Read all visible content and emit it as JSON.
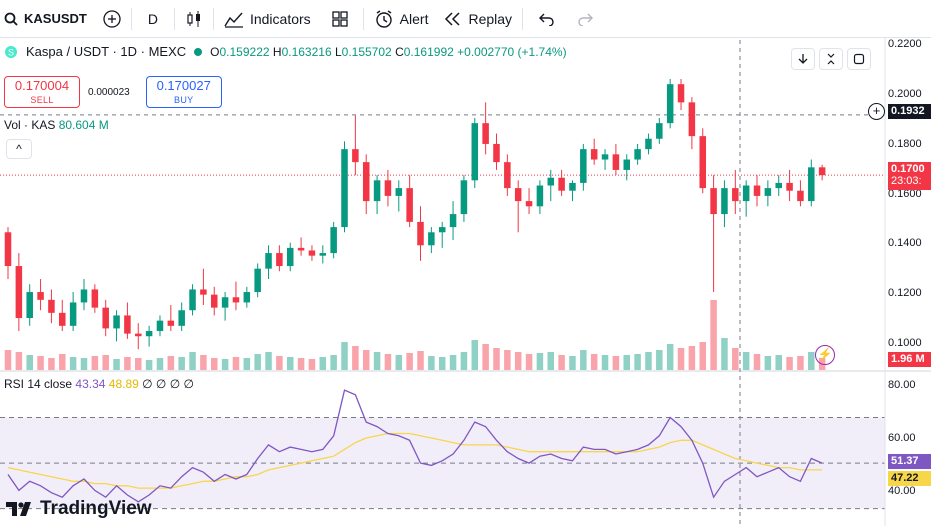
{
  "toolbar": {
    "symbol": "KASUSDT",
    "interval": "D",
    "indicators": "Indicators",
    "alert": "Alert",
    "replay": "Replay"
  },
  "header": {
    "pair": "Kaspa / USDT · 1D · MEXC",
    "open_lbl": "O",
    "open": "0.159222",
    "high_lbl": "H",
    "high": "0.163216",
    "low_lbl": "L",
    "low": "0.155702",
    "close_lbl": "C",
    "close": "0.161992",
    "change": "+0.002770 (+1.74%)"
  },
  "trade": {
    "sell_price": "0.170004",
    "sell_label": "SELL",
    "spread": "0.000023",
    "buy_price": "0.170027",
    "buy_label": "BUY"
  },
  "volume": {
    "label": "Vol · KAS",
    "value": "80.604 M"
  },
  "rsi": {
    "label": "RSI 14 close",
    "value": "43.34",
    "ma": "48.89",
    "extra": "∅ ∅ ∅ ∅"
  },
  "price_axis": [
    "0.2200",
    "0.2000",
    "0.1800",
    "0.1600",
    "0.1400",
    "0.1200",
    "0.1000"
  ],
  "rsi_axis": [
    "80.00",
    "60.00",
    "40.00"
  ],
  "badges": {
    "crosshair": "0.1932",
    "last_price": "0.1700",
    "countdown": "23:03:",
    "volume": "1.96 M",
    "rsi": "51.37",
    "rsi_ma": "47.22"
  },
  "branding": {
    "logo_text": "TradingView"
  },
  "colors": {
    "up": "#089981",
    "down": "#f23645",
    "rsi": "#7e57c2",
    "rsi_ma": "#f7d64a"
  },
  "chart_data": {
    "type": "candlestick",
    "ohlc": [
      [
        0.148,
        0.15,
        0.13,
        0.135
      ],
      [
        0.135,
        0.14,
        0.11,
        0.115
      ],
      [
        0.115,
        0.128,
        0.112,
        0.125
      ],
      [
        0.125,
        0.13,
        0.118,
        0.122
      ],
      [
        0.122,
        0.126,
        0.113,
        0.117
      ],
      [
        0.117,
        0.122,
        0.11,
        0.112
      ],
      [
        0.112,
        0.125,
        0.11,
        0.121
      ],
      [
        0.121,
        0.13,
        0.118,
        0.126
      ],
      [
        0.126,
        0.128,
        0.117,
        0.119
      ],
      [
        0.119,
        0.122,
        0.108,
        0.111
      ],
      [
        0.111,
        0.118,
        0.106,
        0.116
      ],
      [
        0.116,
        0.121,
        0.107,
        0.109
      ],
      [
        0.109,
        0.113,
        0.103,
        0.108
      ],
      [
        0.108,
        0.112,
        0.104,
        0.11
      ],
      [
        0.11,
        0.116,
        0.108,
        0.114
      ],
      [
        0.114,
        0.12,
        0.11,
        0.112
      ],
      [
        0.112,
        0.121,
        0.11,
        0.118
      ],
      [
        0.118,
        0.128,
        0.116,
        0.126
      ],
      [
        0.126,
        0.134,
        0.12,
        0.124
      ],
      [
        0.124,
        0.127,
        0.116,
        0.119
      ],
      [
        0.119,
        0.125,
        0.114,
        0.123
      ],
      [
        0.123,
        0.129,
        0.118,
        0.121
      ],
      [
        0.121,
        0.127,
        0.119,
        0.125
      ],
      [
        0.125,
        0.136,
        0.123,
        0.134
      ],
      [
        0.134,
        0.143,
        0.13,
        0.14
      ],
      [
        0.14,
        0.143,
        0.133,
        0.135
      ],
      [
        0.135,
        0.144,
        0.133,
        0.142
      ],
      [
        0.142,
        0.146,
        0.139,
        0.141
      ],
      [
        0.141,
        0.143,
        0.137,
        0.139
      ],
      [
        0.139,
        0.143,
        0.136,
        0.14
      ],
      [
        0.14,
        0.152,
        0.138,
        0.15
      ],
      [
        0.15,
        0.183,
        0.148,
        0.18
      ],
      [
        0.18,
        0.193,
        0.17,
        0.175
      ],
      [
        0.175,
        0.178,
        0.155,
        0.16
      ],
      [
        0.16,
        0.17,
        0.155,
        0.168
      ],
      [
        0.168,
        0.172,
        0.158,
        0.162
      ],
      [
        0.162,
        0.168,
        0.156,
        0.165
      ],
      [
        0.165,
        0.17,
        0.15,
        0.152
      ],
      [
        0.152,
        0.158,
        0.137,
        0.143
      ],
      [
        0.143,
        0.15,
        0.14,
        0.148
      ],
      [
        0.148,
        0.152,
        0.142,
        0.15
      ],
      [
        0.15,
        0.16,
        0.145,
        0.155
      ],
      [
        0.155,
        0.17,
        0.152,
        0.168
      ],
      [
        0.168,
        0.192,
        0.165,
        0.19
      ],
      [
        0.19,
        0.198,
        0.178,
        0.182
      ],
      [
        0.182,
        0.186,
        0.172,
        0.175
      ],
      [
        0.175,
        0.178,
        0.162,
        0.165
      ],
      [
        0.165,
        0.168,
        0.148,
        0.16
      ],
      [
        0.16,
        0.165,
        0.155,
        0.158
      ],
      [
        0.158,
        0.168,
        0.155,
        0.166
      ],
      [
        0.166,
        0.172,
        0.16,
        0.169
      ],
      [
        0.169,
        0.172,
        0.162,
        0.164
      ],
      [
        0.164,
        0.168,
        0.16,
        0.167
      ],
      [
        0.167,
        0.182,
        0.164,
        0.18
      ],
      [
        0.18,
        0.184,
        0.174,
        0.176
      ],
      [
        0.176,
        0.18,
        0.172,
        0.178
      ],
      [
        0.178,
        0.182,
        0.17,
        0.172
      ],
      [
        0.172,
        0.178,
        0.168,
        0.176
      ],
      [
        0.176,
        0.182,
        0.174,
        0.18
      ],
      [
        0.18,
        0.186,
        0.178,
        0.184
      ],
      [
        0.184,
        0.192,
        0.182,
        0.19
      ],
      [
        0.19,
        0.207,
        0.188,
        0.205
      ],
      [
        0.205,
        0.207,
        0.195,
        0.198
      ],
      [
        0.198,
        0.2,
        0.18,
        0.185
      ],
      [
        0.185,
        0.188,
        0.163,
        0.165
      ],
      [
        0.165,
        0.17,
        0.125,
        0.155
      ],
      [
        0.155,
        0.168,
        0.15,
        0.165
      ],
      [
        0.165,
        0.172,
        0.155,
        0.16
      ],
      [
        0.16,
        0.168,
        0.154,
        0.166
      ],
      [
        0.166,
        0.17,
        0.158,
        0.162
      ],
      [
        0.162,
        0.168,
        0.158,
        0.165
      ],
      [
        0.165,
        0.17,
        0.162,
        0.167
      ],
      [
        0.167,
        0.172,
        0.16,
        0.164
      ],
      [
        0.164,
        0.168,
        0.158,
        0.16
      ],
      [
        0.16,
        0.176,
        0.158,
        0.173
      ],
      [
        0.173,
        0.174,
        0.168,
        0.17
      ]
    ],
    "volume": [
      20,
      18,
      15,
      14,
      12,
      16,
      13,
      12,
      14,
      15,
      11,
      13,
      12,
      10,
      12,
      14,
      13,
      18,
      15,
      12,
      11,
      13,
      12,
      16,
      18,
      14,
      13,
      12,
      11,
      13,
      15,
      28,
      24,
      20,
      18,
      16,
      15,
      17,
      19,
      14,
      13,
      15,
      18,
      30,
      26,
      22,
      20,
      18,
      16,
      17,
      18,
      15,
      14,
      20,
      16,
      15,
      14,
      15,
      16,
      18,
      20,
      26,
      22,
      24,
      28,
      70,
      32,
      22,
      18,
      16,
      14,
      15,
      13,
      14,
      18,
      12
    ],
    "rsi": [
      45,
      38,
      42,
      40,
      37,
      35,
      40,
      43,
      38,
      35,
      40,
      36,
      33,
      36,
      40,
      39,
      44,
      48,
      46,
      42,
      45,
      43,
      45,
      52,
      58,
      55,
      57,
      56,
      55,
      56,
      62,
      82,
      80,
      68,
      66,
      63,
      62,
      60,
      50,
      49,
      51,
      54,
      60,
      68,
      66,
      60,
      55,
      52,
      50,
      53,
      54,
      52,
      51,
      57,
      56,
      56,
      54,
      55,
      56,
      58,
      62,
      70,
      66,
      60,
      50,
      35,
      42,
      45,
      48,
      44,
      46,
      48,
      44,
      42,
      52,
      50
    ],
    "rsi_ma": [
      48,
      47,
      46,
      45,
      44,
      43,
      42,
      42,
      41,
      41,
      40,
      40,
      39,
      39,
      39,
      39,
      40,
      41,
      42,
      42,
      43,
      44,
      44,
      45,
      47,
      48,
      49,
      50,
      51,
      52,
      53,
      56,
      59,
      61,
      62,
      63,
      63,
      63,
      62,
      61,
      60,
      59,
      58,
      58,
      58,
      58,
      57,
      56,
      55,
      55,
      55,
      55,
      55,
      55,
      55,
      55,
      55,
      55,
      55,
      56,
      57,
      59,
      60,
      60,
      58,
      56,
      54,
      52,
      51,
      50,
      49,
      48,
      48,
      47,
      47,
      47
    ],
    "price_range": [
      0.095,
      0.222
    ],
    "rsi_range": [
      25,
      90
    ],
    "rsi_bands": [
      70,
      50,
      30
    ]
  }
}
